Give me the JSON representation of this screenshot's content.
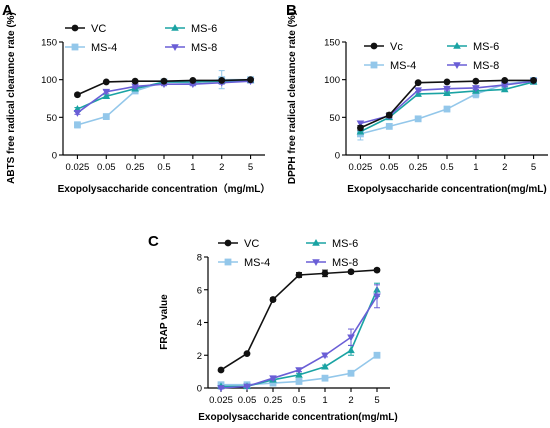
{
  "colors": {
    "VC": "#111111",
    "MS-4": "#93c7ea",
    "MS-6": "#1aa3a3",
    "MS-8": "#6a5ed6"
  },
  "chart_data": [
    {
      "panel": "A",
      "type": "line",
      "categories": [
        "0.025",
        "0.05",
        "0.25",
        "0.5",
        "1",
        "2",
        "5"
      ],
      "ylabel": "ABTS free radical clearance rate (%)",
      "xlabel": "Exopolysaccharide concentration（mg/mL）",
      "ylim": [
        0,
        150
      ],
      "yticks": [
        0,
        50,
        100,
        150
      ],
      "legend": "top-left, two columns",
      "series": [
        {
          "name": "VC",
          "marker": "circle",
          "values": [
            80,
            97,
            98,
            98,
            99,
            99,
            100
          ],
          "errors": [
            2,
            1,
            1,
            1,
            1,
            1,
            1
          ]
        },
        {
          "name": "MS-4",
          "marker": "square",
          "values": [
            40,
            51,
            85,
            97,
            96,
            100,
            100
          ],
          "errors": [
            4,
            2,
            2,
            2,
            2,
            12,
            2
          ]
        },
        {
          "name": "MS-6",
          "marker": "triangle-up",
          "values": [
            61,
            78,
            88,
            97,
            97,
            98,
            99
          ],
          "errors": [
            2,
            2,
            2,
            2,
            2,
            2,
            2
          ]
        },
        {
          "name": "MS-8",
          "marker": "triangle-down",
          "values": [
            56,
            84,
            91,
            94,
            94,
            96,
            98
          ],
          "errors": [
            2,
            2,
            2,
            2,
            2,
            2,
            2
          ]
        }
      ]
    },
    {
      "panel": "B",
      "type": "line",
      "categories": [
        "0.025",
        "0.05",
        "0.25",
        "0.5",
        "1",
        "2",
        "5"
      ],
      "ylabel": "DPPH free radical clearance rate (%)",
      "xlabel": "Exopolysaccharide concentration(mg/mL)",
      "ylim": [
        0,
        150
      ],
      "yticks": [
        0,
        50,
        100,
        150
      ],
      "legend": "top-left, two columns",
      "series": [
        {
          "name": "Vc",
          "marker": "circle",
          "values": [
            36,
            53,
            96,
            97,
            98,
            99,
            99
          ],
          "errors": [
            3,
            3,
            1,
            1,
            1,
            1,
            1
          ]
        },
        {
          "name": "MS-4",
          "marker": "square",
          "values": [
            28,
            38,
            48,
            61,
            81,
            94,
            99
          ],
          "errors": [
            8,
            3,
            2,
            2,
            5,
            2,
            1
          ]
        },
        {
          "name": "MS-6",
          "marker": "triangle-up",
          "values": [
            31,
            50,
            81,
            82,
            85,
            87,
            97
          ],
          "errors": [
            3,
            3,
            3,
            2,
            2,
            2,
            1
          ]
        },
        {
          "name": "MS-8",
          "marker": "triangle-down",
          "values": [
            42,
            52,
            86,
            88,
            89,
            93,
            98
          ],
          "errors": [
            3,
            3,
            2,
            2,
            2,
            2,
            1
          ]
        }
      ]
    },
    {
      "panel": "C",
      "type": "line",
      "categories": [
        "0.025",
        "0.05",
        "0.25",
        "0.5",
        "1",
        "2",
        "5"
      ],
      "ylabel": "FRAP value",
      "xlabel": "Exopolysaccharide concentration(mg/mL)",
      "ylim": [
        0,
        8
      ],
      "yticks": [
        0,
        2,
        4,
        6,
        8
      ],
      "legend": "top-left, two columns",
      "series": [
        {
          "name": "VC",
          "marker": "circle",
          "values": [
            1.1,
            2.1,
            5.4,
            6.9,
            7.0,
            7.1,
            7.2
          ],
          "errors": [
            0.05,
            0.05,
            0.1,
            0.15,
            0.2,
            0.1,
            0.1
          ]
        },
        {
          "name": "MS-4",
          "marker": "square",
          "values": [
            0.2,
            0.2,
            0.3,
            0.4,
            0.6,
            0.9,
            2.0
          ],
          "errors": [
            0.05,
            0.05,
            0.05,
            0.05,
            0.05,
            0.1,
            0.1
          ]
        },
        {
          "name": "MS-6",
          "marker": "triangle-up",
          "values": [
            0.1,
            0.1,
            0.5,
            0.8,
            1.3,
            2.3,
            6.0
          ],
          "errors": [
            0.05,
            0.05,
            0.05,
            0.1,
            0.1,
            0.3,
            0.4
          ]
        },
        {
          "name": "MS-8",
          "marker": "triangle-down",
          "values": [
            0.0,
            0.1,
            0.6,
            1.1,
            2.0,
            3.1,
            5.6
          ],
          "errors": [
            0.05,
            0.05,
            0.1,
            0.1,
            0.1,
            0.5,
            0.7
          ]
        }
      ]
    }
  ]
}
